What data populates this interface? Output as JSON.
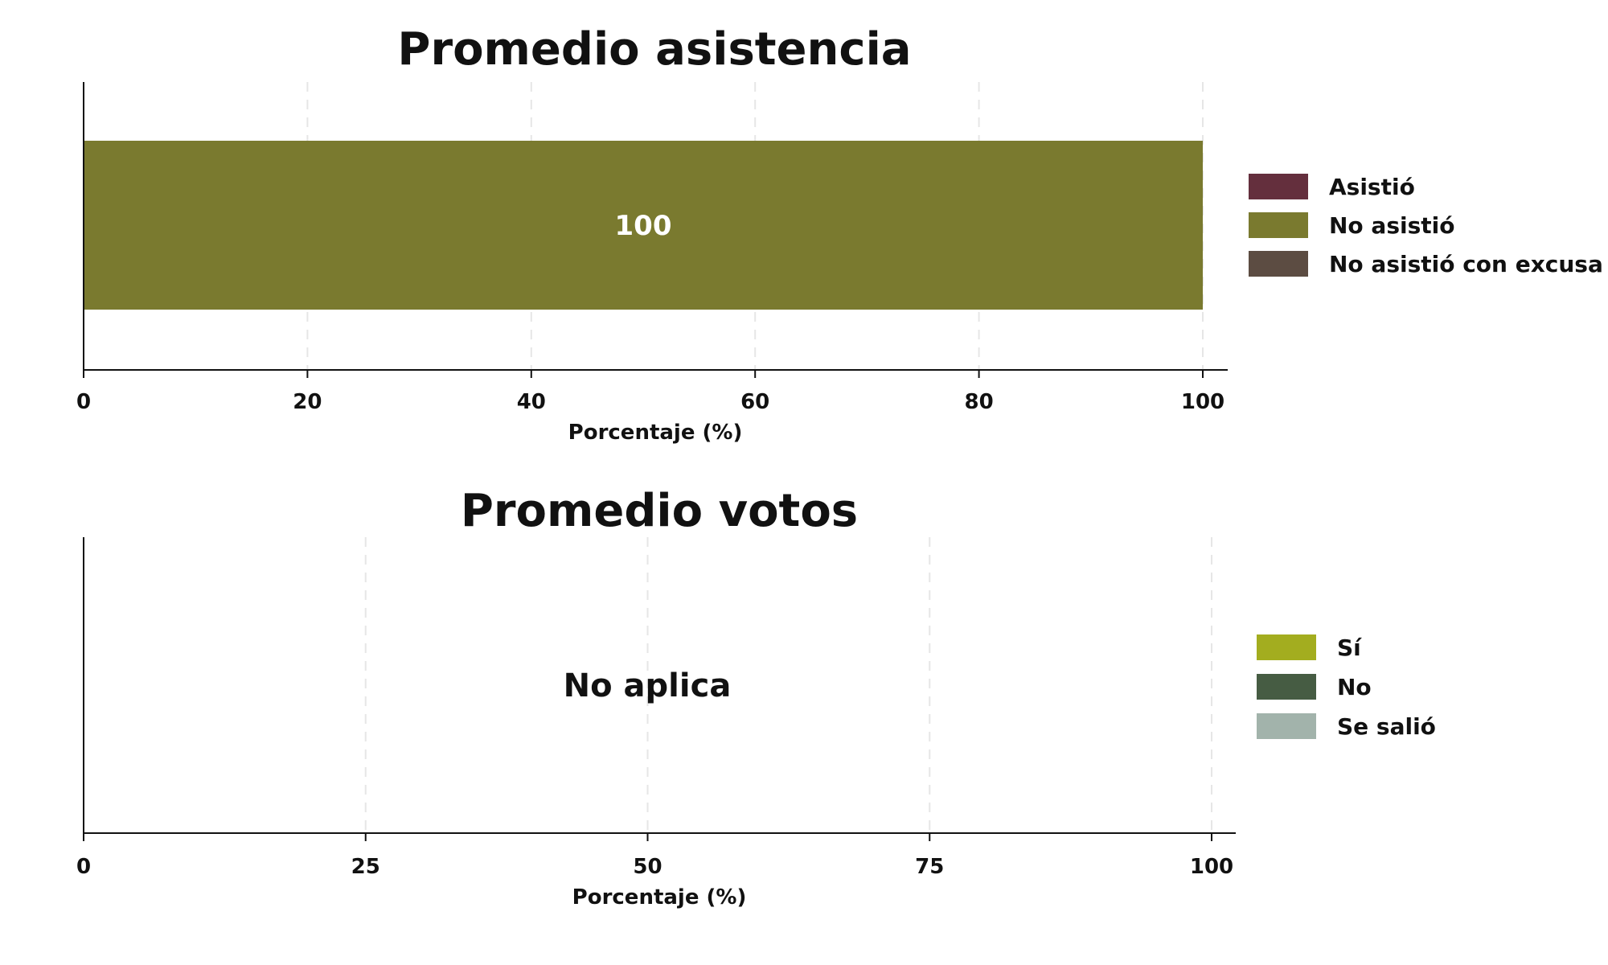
{
  "chart_data": [
    {
      "type": "bar",
      "orientation": "horizontal",
      "stacked": true,
      "title": "Promedio asistencia",
      "xlabel": "Porcentaje (%)",
      "xlim": [
        0,
        100
      ],
      "xticks": [
        0,
        20,
        40,
        60,
        80,
        100
      ],
      "grid": true,
      "legend_position": "right",
      "series": [
        {
          "name": "Asistió",
          "color": "#642f3d",
          "values": [
            0
          ]
        },
        {
          "name": "No asistió",
          "color": "#7a7a2f",
          "values": [
            100
          ]
        },
        {
          "name": "No asistió con excusa",
          "color": "#5c4c42",
          "values": [
            0
          ]
        }
      ],
      "data_labels": [
        "100"
      ]
    },
    {
      "type": "bar",
      "orientation": "horizontal",
      "stacked": true,
      "title": "Promedio votos",
      "xlabel": "Porcentaje (%)",
      "xlim": [
        0,
        100
      ],
      "xticks": [
        0,
        25,
        50,
        75,
        100
      ],
      "grid": true,
      "legend_position": "right",
      "annotation": "No aplica",
      "series": [
        {
          "name": "Sí",
          "color": "#a3ad1f",
          "values": []
        },
        {
          "name": "No",
          "color": "#465c43",
          "values": []
        },
        {
          "name": "Se salió",
          "color": "#a2b3ab",
          "values": []
        }
      ]
    }
  ]
}
